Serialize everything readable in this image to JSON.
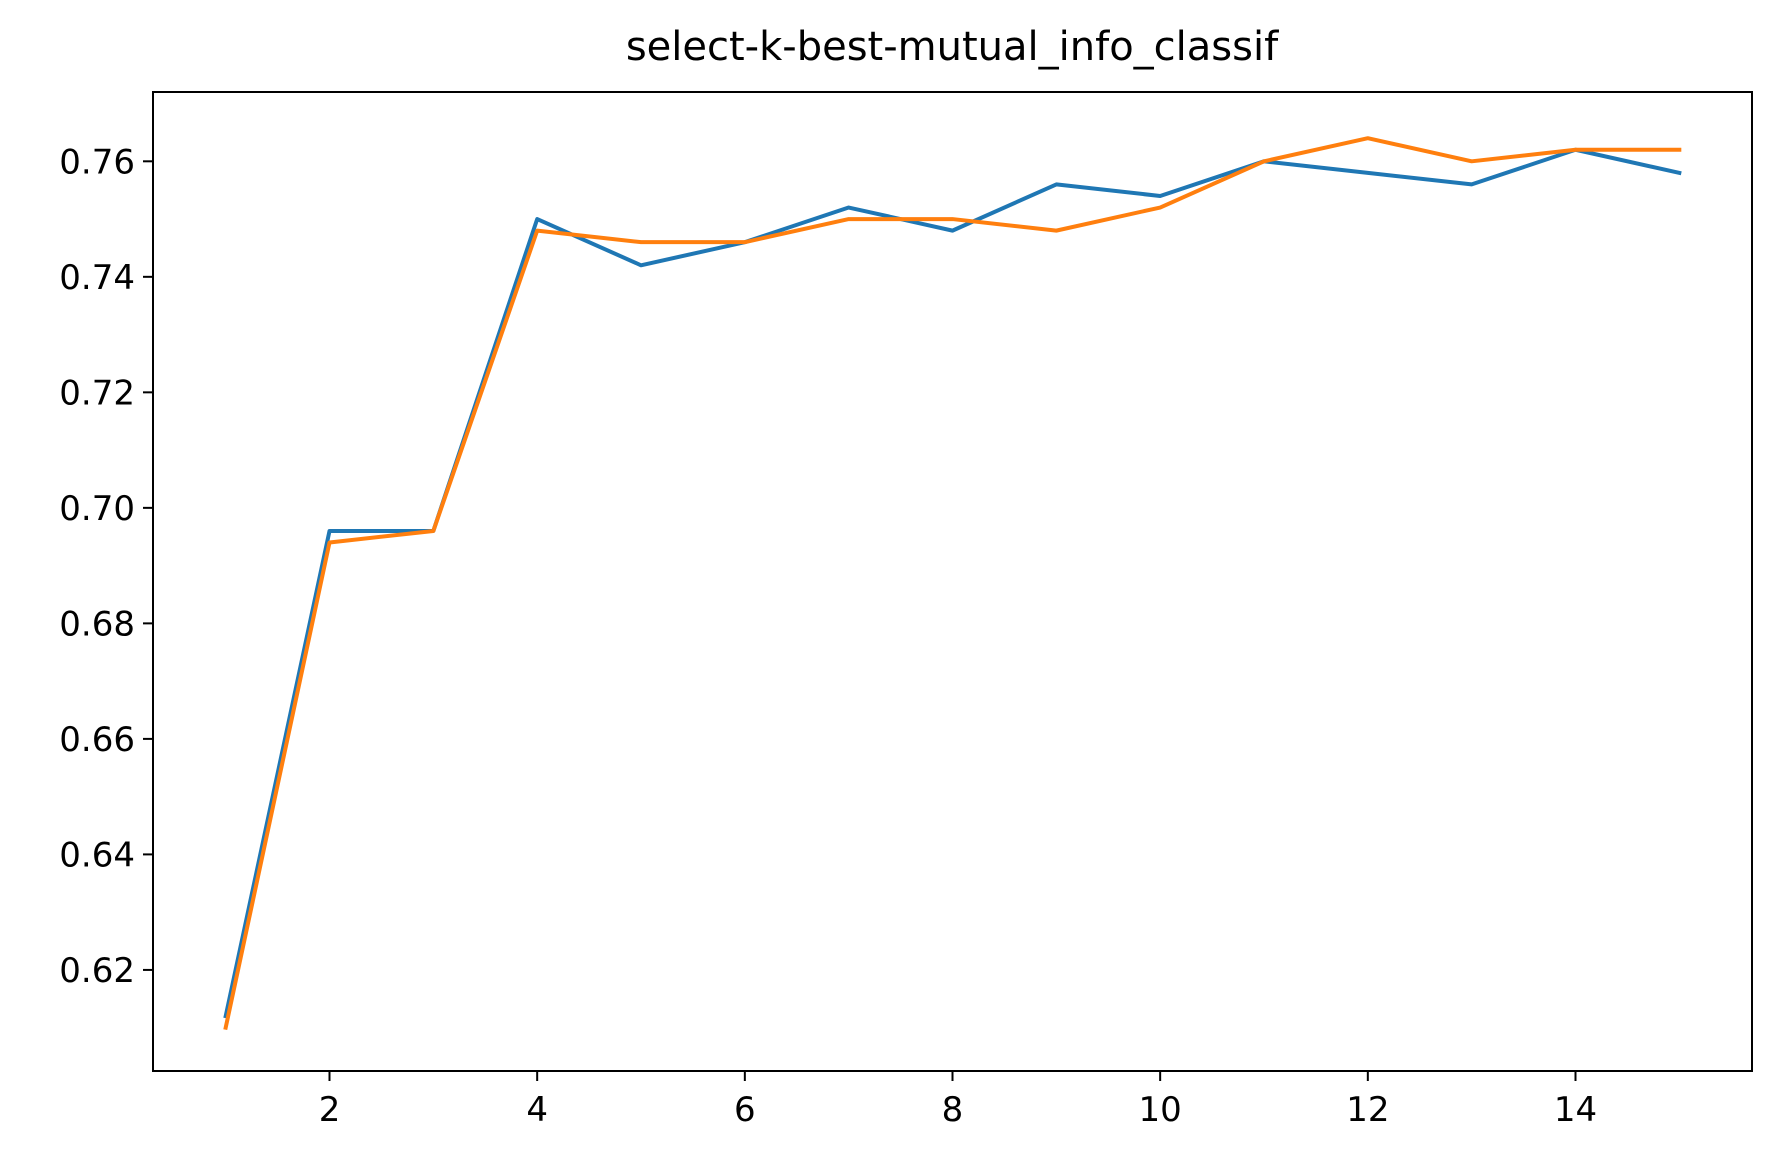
{
  "chart_data": {
    "type": "line",
    "title": "select-k-best-mutual_info_classif",
    "xlabel": "",
    "ylabel": "",
    "xlim": [
      0.3,
      15.7
    ],
    "ylim": [
      0.6025,
      0.772
    ],
    "x_ticks": [
      2,
      4,
      6,
      8,
      10,
      12,
      14
    ],
    "x_tick_labels": [
      "2",
      "4",
      "6",
      "8",
      "10",
      "12",
      "14"
    ],
    "y_ticks": [
      0.62,
      0.64,
      0.66,
      0.68,
      0.7,
      0.72,
      0.74,
      0.76
    ],
    "y_tick_labels": [
      "0.62",
      "0.64",
      "0.66",
      "0.68",
      "0.70",
      "0.72",
      "0.74",
      "0.76"
    ],
    "grid": false,
    "legend": "none",
    "x": [
      1,
      2,
      3,
      4,
      5,
      6,
      7,
      8,
      9,
      10,
      11,
      12,
      13,
      14,
      15
    ],
    "series": [
      {
        "color": "#1f77b4",
        "values": [
          0.612,
          0.696,
          0.696,
          0.75,
          0.742,
          0.746,
          0.752,
          0.748,
          0.756,
          0.754,
          0.76,
          0.758,
          0.756,
          0.762,
          0.758
        ]
      },
      {
        "color": "#ff7f0e",
        "values": [
          0.61,
          0.694,
          0.696,
          0.748,
          0.746,
          0.746,
          0.75,
          0.75,
          0.748,
          0.752,
          0.76,
          0.764,
          0.76,
          0.762,
          0.762
        ]
      }
    ]
  }
}
